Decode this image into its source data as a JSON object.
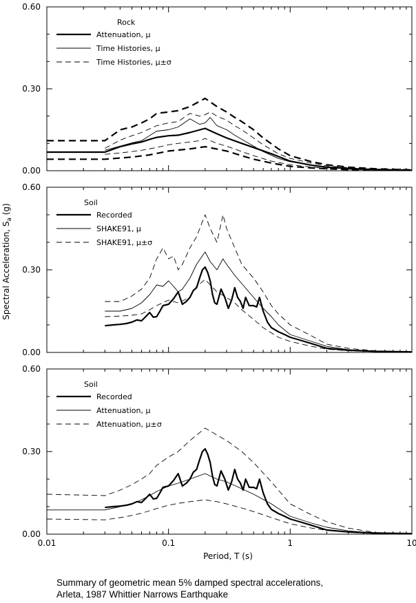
{
  "caption": {
    "line1": "Summary of geometric mean 5% damped spectral accelerations,",
    "line2": "Arleta, 1987 Whittier Narrows Earthquake"
  },
  "ylabel_main": "Spectral Acceleration, S",
  "ylabel_sub": "a",
  "ylabel_unit": " (g)",
  "chart_data": [
    {
      "type": "line",
      "xscale": "log",
      "xlim": [
        0.01,
        10
      ],
      "ylim": [
        0,
        0.6
      ],
      "yticks": [
        "0.00",
        "0.30",
        "0.60"
      ],
      "xticks": [],
      "xlabel": "",
      "legend_title": "Rock",
      "series": [
        {
          "name": "Attenuation, μ",
          "style": "thick",
          "x": [
            0.01,
            0.03,
            0.04,
            0.05,
            0.06,
            0.07,
            0.08,
            0.1,
            0.12,
            0.15,
            0.2,
            0.25,
            0.3,
            0.4,
            0.5,
            0.7,
            1.0,
            1.5,
            2,
            3,
            5,
            10
          ],
          "y": [
            0.068,
            0.068,
            0.088,
            0.098,
            0.105,
            0.115,
            0.122,
            0.128,
            0.13,
            0.14,
            0.155,
            0.135,
            0.12,
            0.1,
            0.085,
            0.062,
            0.035,
            0.02,
            0.013,
            0.008,
            0.004,
            0.002
          ]
        },
        {
          "name": "Time Histories, μ",
          "style": "thin",
          "x": [
            0.03,
            0.04,
            0.05,
            0.06,
            0.08,
            0.1,
            0.12,
            0.15,
            0.18,
            0.2,
            0.22,
            0.25,
            0.3,
            0.35,
            0.4,
            0.5,
            0.6,
            0.8,
            1.0,
            1.5,
            2,
            3,
            5,
            10
          ],
          "y": [
            0.075,
            0.09,
            0.102,
            0.11,
            0.145,
            0.15,
            0.16,
            0.19,
            0.17,
            0.175,
            0.195,
            0.165,
            0.15,
            0.13,
            0.115,
            0.09,
            0.07,
            0.045,
            0.033,
            0.02,
            0.013,
            0.008,
            0.004,
            0.002
          ]
        },
        {
          "name": "Time Histories, μ±σ",
          "style": "thin-dash",
          "x": [
            0.03,
            0.04,
            0.05,
            0.06,
            0.08,
            0.1,
            0.12,
            0.15,
            0.18,
            0.2,
            0.22,
            0.25,
            0.3,
            0.35,
            0.4,
            0.5,
            0.6,
            0.8,
            1.0,
            1.5,
            2,
            3,
            5,
            10
          ],
          "y": [
            0.082,
            0.112,
            0.128,
            0.14,
            0.165,
            0.175,
            0.18,
            0.21,
            0.2,
            0.205,
            0.215,
            0.2,
            0.185,
            0.165,
            0.15,
            0.12,
            0.095,
            0.062,
            0.045,
            0.028,
            0.018,
            0.011,
            0.006,
            0.003
          ]
        },
        {
          "name": "",
          "style": "thin-dash",
          "x": [
            0.03,
            0.04,
            0.05,
            0.06,
            0.08,
            0.1,
            0.12,
            0.15,
            0.18,
            0.2,
            0.25,
            0.3,
            0.4,
            0.5,
            0.7,
            1.0,
            1.5,
            2,
            3,
            5,
            10
          ],
          "y": [
            0.06,
            0.065,
            0.07,
            0.075,
            0.085,
            0.095,
            0.1,
            0.105,
            0.11,
            0.118,
            0.1,
            0.09,
            0.07,
            0.055,
            0.035,
            0.022,
            0.013,
            0.009,
            0.005,
            0.003,
            0.001
          ]
        },
        {
          "name": "",
          "style": "thick-dash",
          "x": [
            0.01,
            0.03,
            0.04,
            0.05,
            0.06,
            0.07,
            0.08,
            0.1,
            0.12,
            0.15,
            0.2,
            0.25,
            0.3,
            0.35,
            0.4,
            0.5,
            0.6,
            0.8,
            1.0,
            1.5,
            2,
            3,
            5,
            10
          ],
          "y": [
            0.11,
            0.11,
            0.15,
            0.16,
            0.175,
            0.19,
            0.21,
            0.215,
            0.22,
            0.235,
            0.265,
            0.235,
            0.215,
            0.195,
            0.18,
            0.15,
            0.12,
            0.08,
            0.055,
            0.033,
            0.022,
            0.013,
            0.007,
            0.003
          ]
        },
        {
          "name": "",
          "style": "thick-dash",
          "x": [
            0.01,
            0.03,
            0.05,
            0.07,
            0.1,
            0.15,
            0.2,
            0.3,
            0.4,
            0.5,
            0.7,
            1.0,
            1.5,
            2,
            3,
            5,
            10
          ],
          "y": [
            0.042,
            0.042,
            0.05,
            0.058,
            0.072,
            0.08,
            0.088,
            0.072,
            0.055,
            0.042,
            0.028,
            0.016,
            0.01,
            0.007,
            0.004,
            0.002,
            0.001
          ]
        }
      ]
    },
    {
      "type": "line",
      "xscale": "log",
      "xlim": [
        0.01,
        10
      ],
      "ylim": [
        0,
        0.6
      ],
      "yticks": [
        "0.00",
        "0.30",
        "0.60"
      ],
      "xticks": [],
      "xlabel": "",
      "legend_title": "Soil",
      "series": [
        {
          "name": "Recorded",
          "style": "thick",
          "x": [
            0.03,
            0.035,
            0.04,
            0.045,
            0.05,
            0.055,
            0.06,
            0.065,
            0.07,
            0.075,
            0.08,
            0.085,
            0.09,
            0.1,
            0.11,
            0.12,
            0.13,
            0.14,
            0.15,
            0.16,
            0.17,
            0.18,
            0.19,
            0.2,
            0.21,
            0.22,
            0.23,
            0.24,
            0.25,
            0.27,
            0.29,
            0.31,
            0.33,
            0.35,
            0.37,
            0.39,
            0.41,
            0.43,
            0.46,
            0.5,
            0.53,
            0.56,
            0.6,
            0.65,
            0.7,
            0.8,
            0.9,
            1.0,
            1.2,
            1.5,
            2,
            3,
            5,
            10
          ],
          "y": [
            0.097,
            0.1,
            0.102,
            0.105,
            0.11,
            0.118,
            0.115,
            0.13,
            0.145,
            0.128,
            0.13,
            0.15,
            0.17,
            0.175,
            0.195,
            0.22,
            0.175,
            0.185,
            0.2,
            0.225,
            0.235,
            0.27,
            0.3,
            0.31,
            0.29,
            0.26,
            0.21,
            0.18,
            0.175,
            0.23,
            0.2,
            0.16,
            0.19,
            0.235,
            0.2,
            0.185,
            0.16,
            0.2,
            0.17,
            0.17,
            0.165,
            0.2,
            0.15,
            0.11,
            0.09,
            0.075,
            0.065,
            0.055,
            0.045,
            0.032,
            0.015,
            0.008,
            0.004,
            0.002
          ]
        },
        {
          "name": "SHAKE91, μ",
          "style": "thin",
          "x": [
            0.03,
            0.04,
            0.05,
            0.06,
            0.07,
            0.08,
            0.09,
            0.1,
            0.11,
            0.12,
            0.13,
            0.15,
            0.17,
            0.2,
            0.22,
            0.25,
            0.28,
            0.3,
            0.35,
            0.4,
            0.5,
            0.6,
            0.7,
            0.8,
            1.0,
            1.5,
            2,
            3,
            5,
            10
          ],
          "y": [
            0.15,
            0.15,
            0.16,
            0.18,
            0.21,
            0.245,
            0.24,
            0.26,
            0.24,
            0.22,
            0.23,
            0.27,
            0.32,
            0.365,
            0.33,
            0.3,
            0.34,
            0.32,
            0.28,
            0.25,
            0.2,
            0.16,
            0.13,
            0.1,
            0.065,
            0.04,
            0.022,
            0.01,
            0.005,
            0.002
          ]
        },
        {
          "name": "SHAKE91, μ±σ",
          "style": "thin-dash",
          "x": [
            0.03,
            0.04,
            0.05,
            0.06,
            0.07,
            0.08,
            0.09,
            0.1,
            0.11,
            0.12,
            0.13,
            0.15,
            0.17,
            0.2,
            0.22,
            0.25,
            0.28,
            0.3,
            0.35,
            0.4,
            0.5,
            0.6,
            0.7,
            0.8,
            1.0,
            1.5,
            2,
            3,
            5,
            10
          ],
          "y": [
            0.185,
            0.185,
            0.205,
            0.23,
            0.27,
            0.34,
            0.38,
            0.34,
            0.35,
            0.3,
            0.32,
            0.38,
            0.42,
            0.5,
            0.45,
            0.4,
            0.5,
            0.45,
            0.38,
            0.32,
            0.27,
            0.22,
            0.17,
            0.14,
            0.1,
            0.06,
            0.03,
            0.015,
            0.006,
            0.002
          ]
        },
        {
          "name": "",
          "style": "thin-dash",
          "x": [
            0.03,
            0.04,
            0.05,
            0.06,
            0.07,
            0.08,
            0.1,
            0.12,
            0.15,
            0.17,
            0.2,
            0.22,
            0.25,
            0.3,
            0.35,
            0.4,
            0.5,
            0.6,
            0.8,
            1.0,
            1.5,
            2,
            3,
            5,
            10
          ],
          "y": [
            0.13,
            0.132,
            0.135,
            0.14,
            0.155,
            0.17,
            0.19,
            0.18,
            0.2,
            0.24,
            0.265,
            0.245,
            0.22,
            0.2,
            0.18,
            0.155,
            0.12,
            0.09,
            0.055,
            0.04,
            0.022,
            0.012,
            0.006,
            0.003,
            0.001
          ]
        }
      ]
    },
    {
      "type": "line",
      "xscale": "log",
      "xlim": [
        0.01,
        10
      ],
      "ylim": [
        0,
        0.6
      ],
      "yticks": [
        "0.00",
        "0.30",
        "0.60"
      ],
      "xticks": [
        "0.01",
        "0.1",
        "1",
        "10"
      ],
      "xlabel": "Period, T (s)",
      "legend_title": "Soil",
      "series": [
        {
          "name": "Recorded",
          "style": "thick",
          "x": [
            0.03,
            0.035,
            0.04,
            0.045,
            0.05,
            0.055,
            0.06,
            0.065,
            0.07,
            0.075,
            0.08,
            0.085,
            0.09,
            0.1,
            0.11,
            0.12,
            0.13,
            0.14,
            0.15,
            0.16,
            0.17,
            0.18,
            0.19,
            0.2,
            0.21,
            0.22,
            0.23,
            0.24,
            0.25,
            0.27,
            0.29,
            0.31,
            0.33,
            0.35,
            0.37,
            0.39,
            0.41,
            0.43,
            0.46,
            0.5,
            0.53,
            0.56,
            0.6,
            0.65,
            0.7,
            0.8,
            0.9,
            1.0,
            1.2,
            1.5,
            2,
            3,
            5,
            10
          ],
          "y": [
            0.097,
            0.1,
            0.102,
            0.105,
            0.11,
            0.118,
            0.115,
            0.13,
            0.145,
            0.128,
            0.13,
            0.15,
            0.17,
            0.175,
            0.195,
            0.22,
            0.175,
            0.185,
            0.2,
            0.225,
            0.235,
            0.27,
            0.3,
            0.31,
            0.29,
            0.26,
            0.21,
            0.18,
            0.175,
            0.23,
            0.2,
            0.16,
            0.19,
            0.235,
            0.2,
            0.185,
            0.16,
            0.2,
            0.17,
            0.17,
            0.165,
            0.2,
            0.15,
            0.11,
            0.09,
            0.075,
            0.065,
            0.055,
            0.045,
            0.032,
            0.015,
            0.008,
            0.004,
            0.002
          ]
        },
        {
          "name": "Attenuation, μ",
          "style": "thin",
          "x": [
            0.01,
            0.03,
            0.04,
            0.05,
            0.06,
            0.07,
            0.08,
            0.1,
            0.12,
            0.15,
            0.2,
            0.25,
            0.3,
            0.4,
            0.5,
            0.7,
            1.0,
            1.5,
            2,
            3,
            5,
            10
          ],
          "y": [
            0.088,
            0.088,
            0.1,
            0.11,
            0.125,
            0.14,
            0.155,
            0.175,
            0.185,
            0.2,
            0.22,
            0.2,
            0.19,
            0.165,
            0.145,
            0.11,
            0.065,
            0.04,
            0.025,
            0.012,
            0.004,
            0.001
          ]
        },
        {
          "name": "Attenuation, μ±σ",
          "style": "thin-dash",
          "x": [
            0.01,
            0.03,
            0.04,
            0.05,
            0.06,
            0.07,
            0.08,
            0.1,
            0.12,
            0.15,
            0.2,
            0.25,
            0.3,
            0.4,
            0.5,
            0.7,
            1.0,
            1.5,
            2,
            3,
            5,
            10
          ],
          "y": [
            0.145,
            0.14,
            0.16,
            0.18,
            0.2,
            0.22,
            0.25,
            0.28,
            0.3,
            0.34,
            0.385,
            0.36,
            0.34,
            0.3,
            0.26,
            0.19,
            0.11,
            0.07,
            0.045,
            0.022,
            0.006,
            0.002
          ]
        },
        {
          "name": "",
          "style": "thin-dash",
          "x": [
            0.01,
            0.03,
            0.04,
            0.05,
            0.06,
            0.07,
            0.08,
            0.1,
            0.12,
            0.15,
            0.2,
            0.25,
            0.3,
            0.4,
            0.5,
            0.7,
            1.0,
            1.5,
            2,
            3,
            5,
            10
          ],
          "y": [
            0.055,
            0.052,
            0.06,
            0.068,
            0.076,
            0.085,
            0.093,
            0.105,
            0.112,
            0.118,
            0.125,
            0.118,
            0.11,
            0.095,
            0.082,
            0.06,
            0.038,
            0.022,
            0.014,
            0.007,
            0.002,
            0.001
          ]
        }
      ]
    }
  ]
}
